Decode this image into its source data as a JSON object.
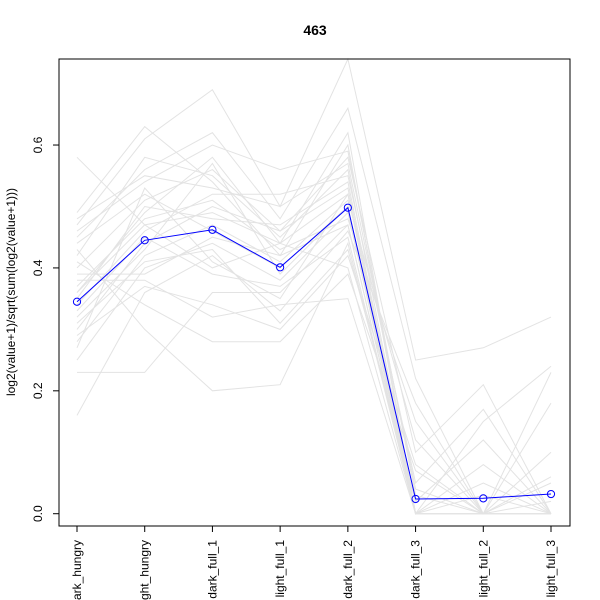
{
  "chart_data": {
    "type": "line",
    "title": "463",
    "xlabel": "",
    "ylabel": "log2(value+1)/sqrt(sum(log2(value+1)))",
    "categories": [
      "dark_hungry",
      "light_hungry",
      "dark_full_1",
      "light_full_1",
      "dark_full_2",
      "dark_full_3",
      "light_full_2",
      "light_full_3"
    ],
    "ylim": [
      -0.02,
      0.74
    ],
    "yticks": [
      "0.0",
      "0.2",
      "0.4",
      "0.6"
    ],
    "ytick_values": [
      0.0,
      0.2,
      0.4,
      0.6
    ],
    "grid": false,
    "colors": {
      "highlight": "#0000ff",
      "background_lines": "#e3e3e3"
    },
    "highlight_series": {
      "values": [
        0.345,
        0.445,
        0.462,
        0.401,
        0.498,
        0.024,
        0.025,
        0.032
      ]
    },
    "background_series": [
      {
        "values": [
          0.58,
          0.47,
          0.4,
          0.44,
          0.52,
          0.0,
          0.0,
          0.0
        ]
      },
      {
        "values": [
          0.49,
          0.63,
          0.54,
          0.42,
          0.47,
          0.0,
          0.0,
          0.02
        ]
      },
      {
        "values": [
          0.47,
          0.61,
          0.69,
          0.5,
          0.74,
          0.25,
          0.27,
          0.32
        ]
      },
      {
        "values": [
          0.45,
          0.56,
          0.62,
          0.48,
          0.66,
          0.22,
          0.0,
          0.0
        ]
      },
      {
        "values": [
          0.4,
          0.51,
          0.56,
          0.46,
          0.58,
          0.1,
          0.21,
          0.0
        ]
      },
      {
        "values": [
          0.36,
          0.49,
          0.58,
          0.44,
          0.62,
          0.0,
          0.15,
          0.24
        ]
      },
      {
        "values": [
          0.34,
          0.46,
          0.52,
          0.52,
          0.55,
          0.05,
          0.17,
          0.0
        ]
      },
      {
        "values": [
          0.3,
          0.44,
          0.5,
          0.46,
          0.53,
          0.0,
          0.0,
          0.18
        ]
      },
      {
        "values": [
          0.28,
          0.42,
          0.47,
          0.41,
          0.51,
          0.12,
          0.0,
          0.0
        ]
      },
      {
        "values": [
          0.25,
          0.4,
          0.44,
          0.38,
          0.49,
          0.0,
          0.05,
          0.0
        ]
      },
      {
        "values": [
          0.23,
          0.23,
          0.36,
          0.36,
          0.47,
          0.0,
          0.0,
          0.23
        ]
      },
      {
        "values": [
          0.16,
          0.36,
          0.42,
          0.33,
          0.46,
          0.18,
          0.0,
          0.0
        ]
      },
      {
        "values": [
          0.43,
          0.3,
          0.2,
          0.21,
          0.44,
          0.0,
          0.0,
          0.0
        ]
      },
      {
        "values": [
          0.41,
          0.34,
          0.28,
          0.28,
          0.39,
          0.07,
          0.0,
          0.0
        ]
      },
      {
        "values": [
          0.38,
          0.38,
          0.32,
          0.34,
          0.35,
          0.0,
          0.0,
          0.1
        ]
      },
      {
        "values": [
          0.46,
          0.54,
          0.6,
          0.56,
          0.59,
          0.03,
          0.0,
          0.0
        ]
      },
      {
        "values": [
          0.44,
          0.52,
          0.46,
          0.4,
          0.5,
          0.0,
          0.08,
          0.0
        ]
      },
      {
        "values": [
          0.42,
          0.58,
          0.55,
          0.45,
          0.56,
          0.0,
          0.0,
          0.0
        ]
      },
      {
        "values": [
          0.37,
          0.48,
          0.51,
          0.43,
          0.48,
          0.15,
          0.0,
          0.0
        ]
      },
      {
        "values": [
          0.33,
          0.45,
          0.39,
          0.37,
          0.45,
          0.0,
          0.0,
          0.05
        ]
      },
      {
        "values": [
          0.31,
          0.41,
          0.43,
          0.31,
          0.43,
          0.02,
          0.12,
          0.0
        ]
      },
      {
        "values": [
          0.35,
          0.5,
          0.48,
          0.47,
          0.54,
          0.0,
          0.0,
          0.0
        ]
      },
      {
        "values": [
          0.39,
          0.39,
          0.45,
          0.42,
          0.6,
          0.0,
          0.0,
          0.0
        ]
      },
      {
        "values": [
          0.48,
          0.55,
          0.53,
          0.5,
          0.57,
          0.04,
          0.0,
          0.0
        ]
      },
      {
        "values": [
          0.27,
          0.53,
          0.41,
          0.35,
          0.52,
          0.0,
          0.03,
          0.0
        ]
      },
      {
        "values": [
          0.32,
          0.43,
          0.57,
          0.39,
          0.5,
          0.0,
          0.0,
          0.06
        ]
      },
      {
        "values": [
          0.36,
          0.47,
          0.49,
          0.44,
          0.4,
          0.0,
          0.0,
          0.0
        ]
      },
      {
        "values": [
          0.29,
          0.37,
          0.34,
          0.3,
          0.42,
          0.08,
          0.0,
          0.0
        ]
      }
    ]
  }
}
